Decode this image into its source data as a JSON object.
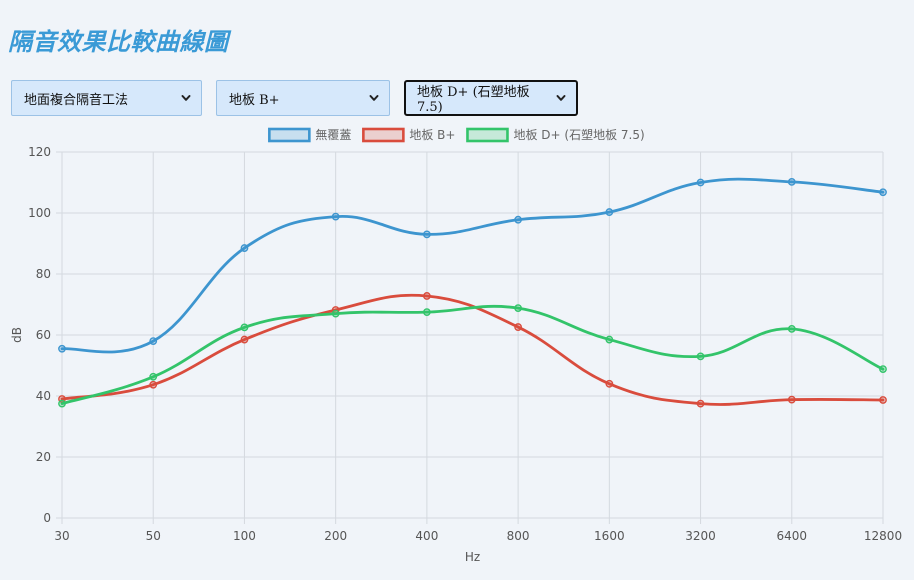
{
  "page": {
    "title": "隔音效果比較曲線圖"
  },
  "controls": {
    "method_select": {
      "value": "地面複合隔音工法",
      "icon": "chevron-down-icon"
    },
    "compare_a_select": {
      "value": "地板 B+",
      "icon": "chevron-down-icon"
    },
    "compare_b_select": {
      "value": "地板 D+ (石塑地板 7.5)",
      "icon": "chevron-down-icon"
    }
  },
  "chart_data": {
    "type": "line",
    "xlabel": "Hz",
    "ylabel": "dB",
    "categories": [
      "30",
      "50",
      "100",
      "200",
      "400",
      "800",
      "1600",
      "3200",
      "6400",
      "12800"
    ],
    "ylim": [
      0,
      120
    ],
    "yticks": [
      0,
      20,
      40,
      60,
      80,
      100,
      120
    ],
    "grid": true,
    "legend_position": "top-center",
    "series": [
      {
        "name": "無覆蓋",
        "color": "#3d95cf",
        "values": [
          55.5,
          58,
          88.5,
          98.8,
          93,
          97.8,
          100.3,
          110,
          110.2,
          106.8
        ]
      },
      {
        "name": "地板 B+",
        "color": "#d94c3d",
        "values": [
          39,
          43.7,
          58.5,
          68.2,
          72.8,
          62.6,
          44,
          37.5,
          38.8,
          38.7
        ]
      },
      {
        "name": "地板 D+ (石塑地板 7.5)",
        "color": "#33c46a",
        "values": [
          37.5,
          46.3,
          62.5,
          67,
          67.5,
          68.8,
          58.5,
          53,
          62,
          48.8
        ]
      }
    ]
  }
}
